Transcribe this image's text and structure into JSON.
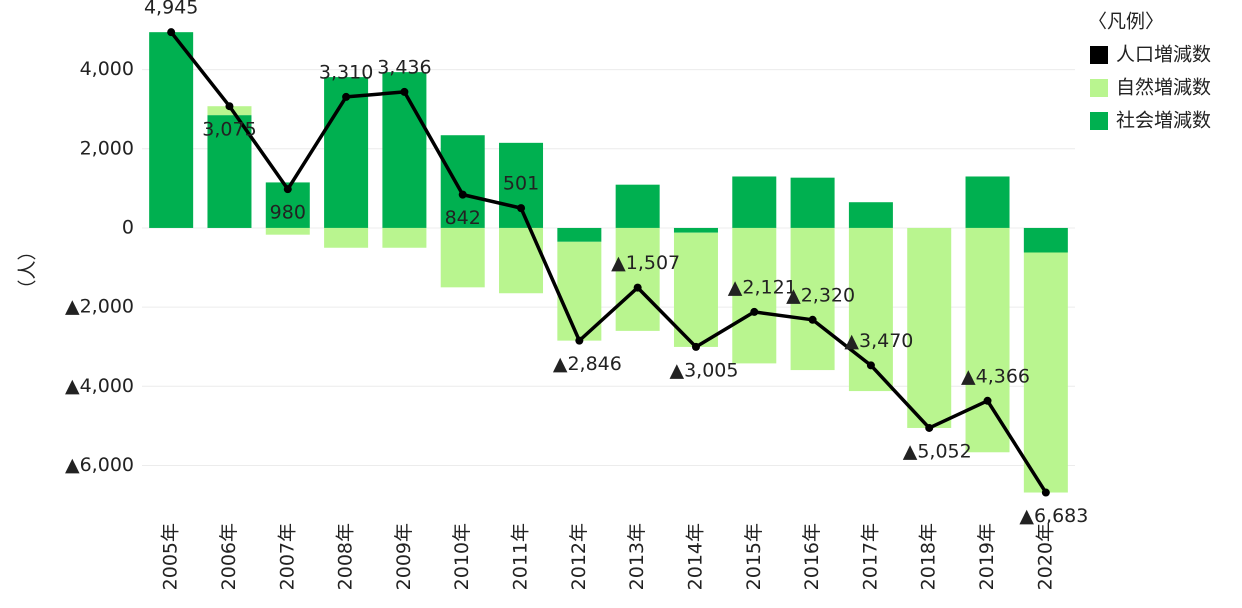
{
  "chart_data": {
    "type": "bar",
    "categories": [
      "2005年",
      "2006年",
      "2007年",
      "2008年",
      "2009年",
      "2010年",
      "2011年",
      "2012年",
      "2013年",
      "2014年",
      "2015年",
      "2016年",
      "2017年",
      "2018年",
      "2019年",
      "2020年"
    ],
    "series": [
      {
        "name": "人口増減数",
        "type": "line",
        "color": "#000000",
        "values": [
          4945,
          3075,
          980,
          3310,
          3436,
          842,
          501,
          -2846,
          -1507,
          -3005,
          -2121,
          -2320,
          -3470,
          -5052,
          -4366,
          -6683
        ],
        "value_labels": [
          "4,945",
          "3,075",
          "980",
          "3,310",
          "3,436",
          "842",
          "501",
          "▲2,846",
          "▲1,507",
          "▲3,005",
          "▲2,121",
          "▲2,320",
          "▲3,470",
          "▲5,052",
          "▲4,366",
          "▲6,683"
        ]
      },
      {
        "name": "自然増減数",
        "color": "#b9f58f",
        "values": [
          0,
          225,
          -170,
          -500,
          -500,
          -1500,
          -1649,
          -2496,
          -2600,
          -2885,
          -3421,
          -3590,
          -4120,
          -5052,
          -5666,
          -6063
        ]
      },
      {
        "name": "社会増減数",
        "color": "#00b050",
        "values": [
          4945,
          2850,
          1150,
          3810,
          3936,
          2342,
          2150,
          -350,
          1093,
          -120,
          1300,
          1270,
          650,
          0,
          1300,
          -620
        ]
      }
    ],
    "y_label": "（人）",
    "legend_title": "〈凡例〉",
    "legend": "right",
    "ylim": [
      -7200,
      5000
    ],
    "yticks": [
      {
        "value": -6000,
        "label": "▲6,000"
      },
      {
        "value": -4000,
        "label": "▲4,000"
      },
      {
        "value": -2000,
        "label": "▲2,000"
      },
      0,
      {
        "value": 2000,
        "label": "2,000"
      },
      {
        "value": 4000,
        "label": "4,000"
      }
    ],
    "grid": true
  }
}
